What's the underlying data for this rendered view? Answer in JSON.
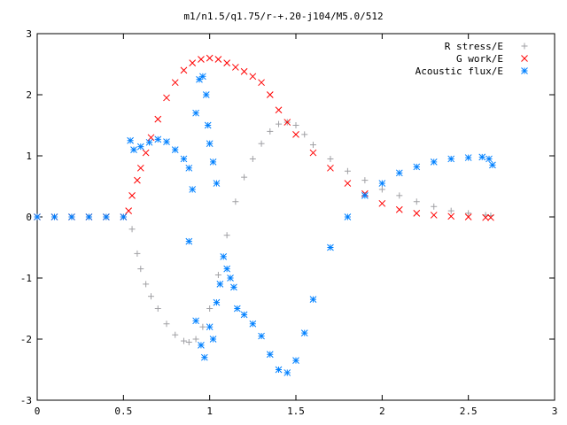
{
  "chart_data": {
    "type": "scatter",
    "title": "m1/n1.5/q1.75/r-+.20-j104/M5.0/512",
    "xlim": [
      0,
      3
    ],
    "ylim": [
      -3,
      3
    ],
    "xticks": [
      "0",
      "0.5",
      "1",
      "1.5",
      "2",
      "2.5",
      "3"
    ],
    "yticks": [
      "3",
      "2",
      "1",
      "0",
      "-1",
      "-2",
      "-3"
    ],
    "xtick_values": [
      0,
      0.5,
      1,
      1.5,
      2,
      2.5,
      3
    ],
    "ytick_values": [
      3,
      2,
      1,
      0,
      -1,
      -2,
      -3
    ],
    "grid": false,
    "legend_position": "top-right",
    "series": [
      {
        "name": "R stress/E",
        "marker": "plus",
        "color": "#a0a0a4",
        "points": [
          [
            0.0,
            0
          ],
          [
            0.1,
            0
          ],
          [
            0.2,
            0
          ],
          [
            0.3,
            0
          ],
          [
            0.4,
            0
          ],
          [
            0.5,
            0
          ],
          [
            0.55,
            -0.2
          ],
          [
            0.58,
            -0.6
          ],
          [
            0.6,
            -0.85
          ],
          [
            0.63,
            -1.1
          ],
          [
            0.66,
            -1.3
          ],
          [
            0.7,
            -1.5
          ],
          [
            0.75,
            -1.75
          ],
          [
            0.8,
            -1.93
          ],
          [
            0.85,
            -2.03
          ],
          [
            0.88,
            -2.05
          ],
          [
            0.92,
            -2.0
          ],
          [
            0.96,
            -1.8
          ],
          [
            1.0,
            -1.5
          ],
          [
            1.05,
            -0.95
          ],
          [
            1.1,
            -0.3
          ],
          [
            1.15,
            0.25
          ],
          [
            1.2,
            0.65
          ],
          [
            1.25,
            0.95
          ],
          [
            1.3,
            1.2
          ],
          [
            1.35,
            1.4
          ],
          [
            1.4,
            1.52
          ],
          [
            1.45,
            1.55
          ],
          [
            1.5,
            1.5
          ],
          [
            1.55,
            1.35
          ],
          [
            1.6,
            1.18
          ],
          [
            1.7,
            0.95
          ],
          [
            1.8,
            0.75
          ],
          [
            1.9,
            0.6
          ],
          [
            2.0,
            0.45
          ],
          [
            2.1,
            0.35
          ],
          [
            2.2,
            0.25
          ],
          [
            2.3,
            0.17
          ],
          [
            2.4,
            0.1
          ],
          [
            2.5,
            0.06
          ],
          [
            2.6,
            0.03
          ],
          [
            2.63,
            0.02
          ]
        ]
      },
      {
        "name": "G work/E",
        "marker": "cross",
        "color": "#ff0000",
        "points": [
          [
            0.0,
            0
          ],
          [
            0.1,
            0
          ],
          [
            0.2,
            0
          ],
          [
            0.3,
            0
          ],
          [
            0.4,
            0
          ],
          [
            0.5,
            0
          ],
          [
            0.53,
            0.1
          ],
          [
            0.55,
            0.35
          ],
          [
            0.58,
            0.6
          ],
          [
            0.6,
            0.8
          ],
          [
            0.63,
            1.05
          ],
          [
            0.66,
            1.3
          ],
          [
            0.7,
            1.6
          ],
          [
            0.75,
            1.95
          ],
          [
            0.8,
            2.2
          ],
          [
            0.85,
            2.4
          ],
          [
            0.9,
            2.52
          ],
          [
            0.95,
            2.58
          ],
          [
            1.0,
            2.6
          ],
          [
            1.05,
            2.58
          ],
          [
            1.1,
            2.52
          ],
          [
            1.15,
            2.45
          ],
          [
            1.2,
            2.38
          ],
          [
            1.25,
            2.3
          ],
          [
            1.3,
            2.2
          ],
          [
            1.35,
            2.0
          ],
          [
            1.4,
            1.75
          ],
          [
            1.45,
            1.55
          ],
          [
            1.5,
            1.35
          ],
          [
            1.6,
            1.05
          ],
          [
            1.7,
            0.8
          ],
          [
            1.8,
            0.55
          ],
          [
            1.9,
            0.38
          ],
          [
            2.0,
            0.22
          ],
          [
            2.1,
            0.12
          ],
          [
            2.2,
            0.06
          ],
          [
            2.3,
            0.03
          ],
          [
            2.4,
            0.01
          ],
          [
            2.5,
            0.0
          ],
          [
            2.6,
            -0.01
          ],
          [
            2.63,
            -0.01
          ]
        ]
      },
      {
        "name": "Acoustic flux/E",
        "marker": "star",
        "color": "#0080ff",
        "points": [
          [
            0.0,
            0
          ],
          [
            0.1,
            0
          ],
          [
            0.2,
            0
          ],
          [
            0.3,
            0
          ],
          [
            0.4,
            0
          ],
          [
            0.5,
            0
          ],
          [
            0.54,
            1.25
          ],
          [
            0.56,
            1.1
          ],
          [
            0.6,
            1.15
          ],
          [
            0.65,
            1.22
          ],
          [
            0.7,
            1.27
          ],
          [
            0.75,
            1.23
          ],
          [
            0.8,
            1.1
          ],
          [
            0.85,
            0.95
          ],
          [
            0.88,
            0.8
          ],
          [
            0.92,
            1.7
          ],
          [
            0.94,
            2.25
          ],
          [
            0.96,
            2.3
          ],
          [
            0.98,
            2.0
          ],
          [
            0.99,
            1.5
          ],
          [
            1.0,
            1.2
          ],
          [
            1.02,
            0.9
          ],
          [
            1.04,
            0.55
          ],
          [
            0.9,
            0.45
          ],
          [
            0.88,
            -0.4
          ],
          [
            0.92,
            -1.7
          ],
          [
            0.95,
            -2.1
          ],
          [
            0.97,
            -2.3
          ],
          [
            1.0,
            -1.8
          ],
          [
            1.02,
            -2.0
          ],
          [
            1.04,
            -1.4
          ],
          [
            1.06,
            -1.1
          ],
          [
            1.08,
            -0.65
          ],
          [
            1.1,
            -0.85
          ],
          [
            1.12,
            -1.0
          ],
          [
            1.14,
            -1.15
          ],
          [
            1.16,
            -1.5
          ],
          [
            1.2,
            -1.6
          ],
          [
            1.25,
            -1.75
          ],
          [
            1.3,
            -1.95
          ],
          [
            1.35,
            -2.25
          ],
          [
            1.4,
            -2.5
          ],
          [
            1.45,
            -2.55
          ],
          [
            1.5,
            -2.35
          ],
          [
            1.55,
            -1.9
          ],
          [
            1.6,
            -1.35
          ],
          [
            1.7,
            -0.5
          ],
          [
            1.8,
            0.0
          ],
          [
            1.9,
            0.35
          ],
          [
            2.0,
            0.55
          ],
          [
            2.1,
            0.72
          ],
          [
            2.2,
            0.82
          ],
          [
            2.3,
            0.9
          ],
          [
            2.4,
            0.95
          ],
          [
            2.5,
            0.97
          ],
          [
            2.58,
            0.98
          ],
          [
            2.62,
            0.95
          ],
          [
            2.64,
            0.85
          ]
        ]
      }
    ]
  }
}
